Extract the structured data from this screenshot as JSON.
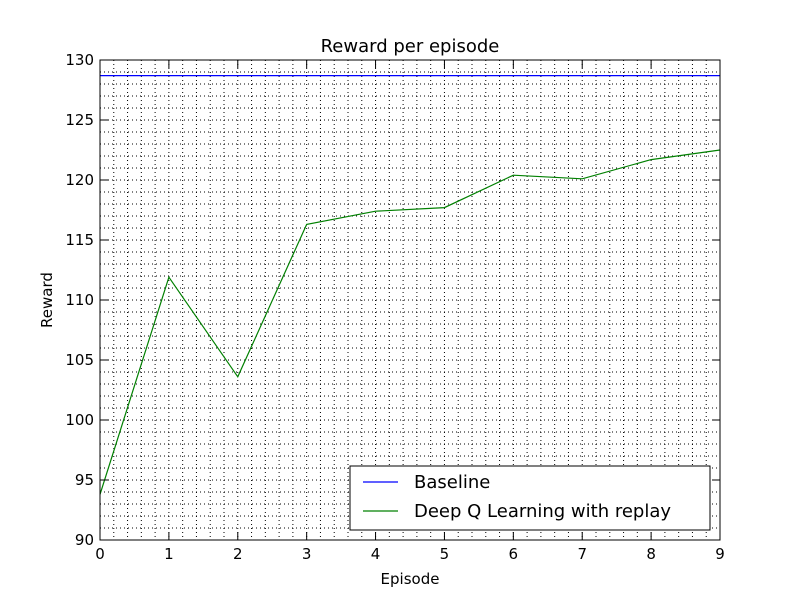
{
  "chart_data": {
    "type": "line",
    "title": "Reward per episode",
    "xlabel": "Episode",
    "ylabel": "Reward",
    "xlim": [
      0,
      9
    ],
    "ylim": [
      90,
      130
    ],
    "x_ticks": [
      0,
      1,
      2,
      3,
      4,
      5,
      6,
      7,
      8,
      9
    ],
    "y_ticks": [
      90,
      95,
      100,
      105,
      110,
      115,
      120,
      125,
      130
    ],
    "grid": "dotted, minor",
    "legend_position": "lower-right",
    "series": [
      {
        "name": "Baseline",
        "color": "#0000ff",
        "x": [
          0,
          9
        ],
        "y": [
          128.7,
          128.7
        ]
      },
      {
        "name": "Deep Q Learning with replay",
        "color": "#008000",
        "x": [
          0,
          1,
          2,
          3,
          4,
          5,
          6,
          7,
          8,
          9
        ],
        "y": [
          93.8,
          111.9,
          103.6,
          116.3,
          117.4,
          117.7,
          120.4,
          120.1,
          121.7,
          122.5
        ]
      }
    ]
  }
}
